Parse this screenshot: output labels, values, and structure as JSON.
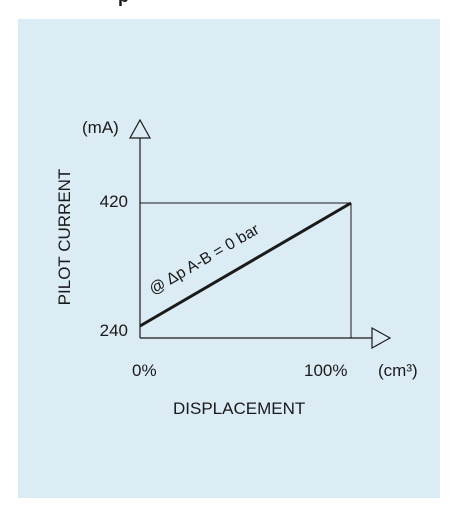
{
  "header": {
    "cut_text": "p"
  },
  "colors": {
    "panel_background": "#dcecf5",
    "line": "#1a1a1a",
    "axis": "#1a1a1a"
  },
  "chart_data": {
    "type": "line",
    "title": "",
    "xlabel": "DISPLACEMENT",
    "ylabel": "PILOT CURRENT",
    "x_unit": "(cm³)",
    "y_unit": "(mA)",
    "x_ticks": [
      "0%",
      "100%"
    ],
    "y_ticks": [
      "240",
      "420"
    ],
    "xlim": [
      0,
      100
    ],
    "ylim": [
      240,
      420
    ],
    "grid": false,
    "series": [
      {
        "x": [
          0,
          100
        ],
        "y": [
          240,
          420
        ]
      }
    ],
    "annotation": "@ Δp A-B = 0 bar"
  }
}
